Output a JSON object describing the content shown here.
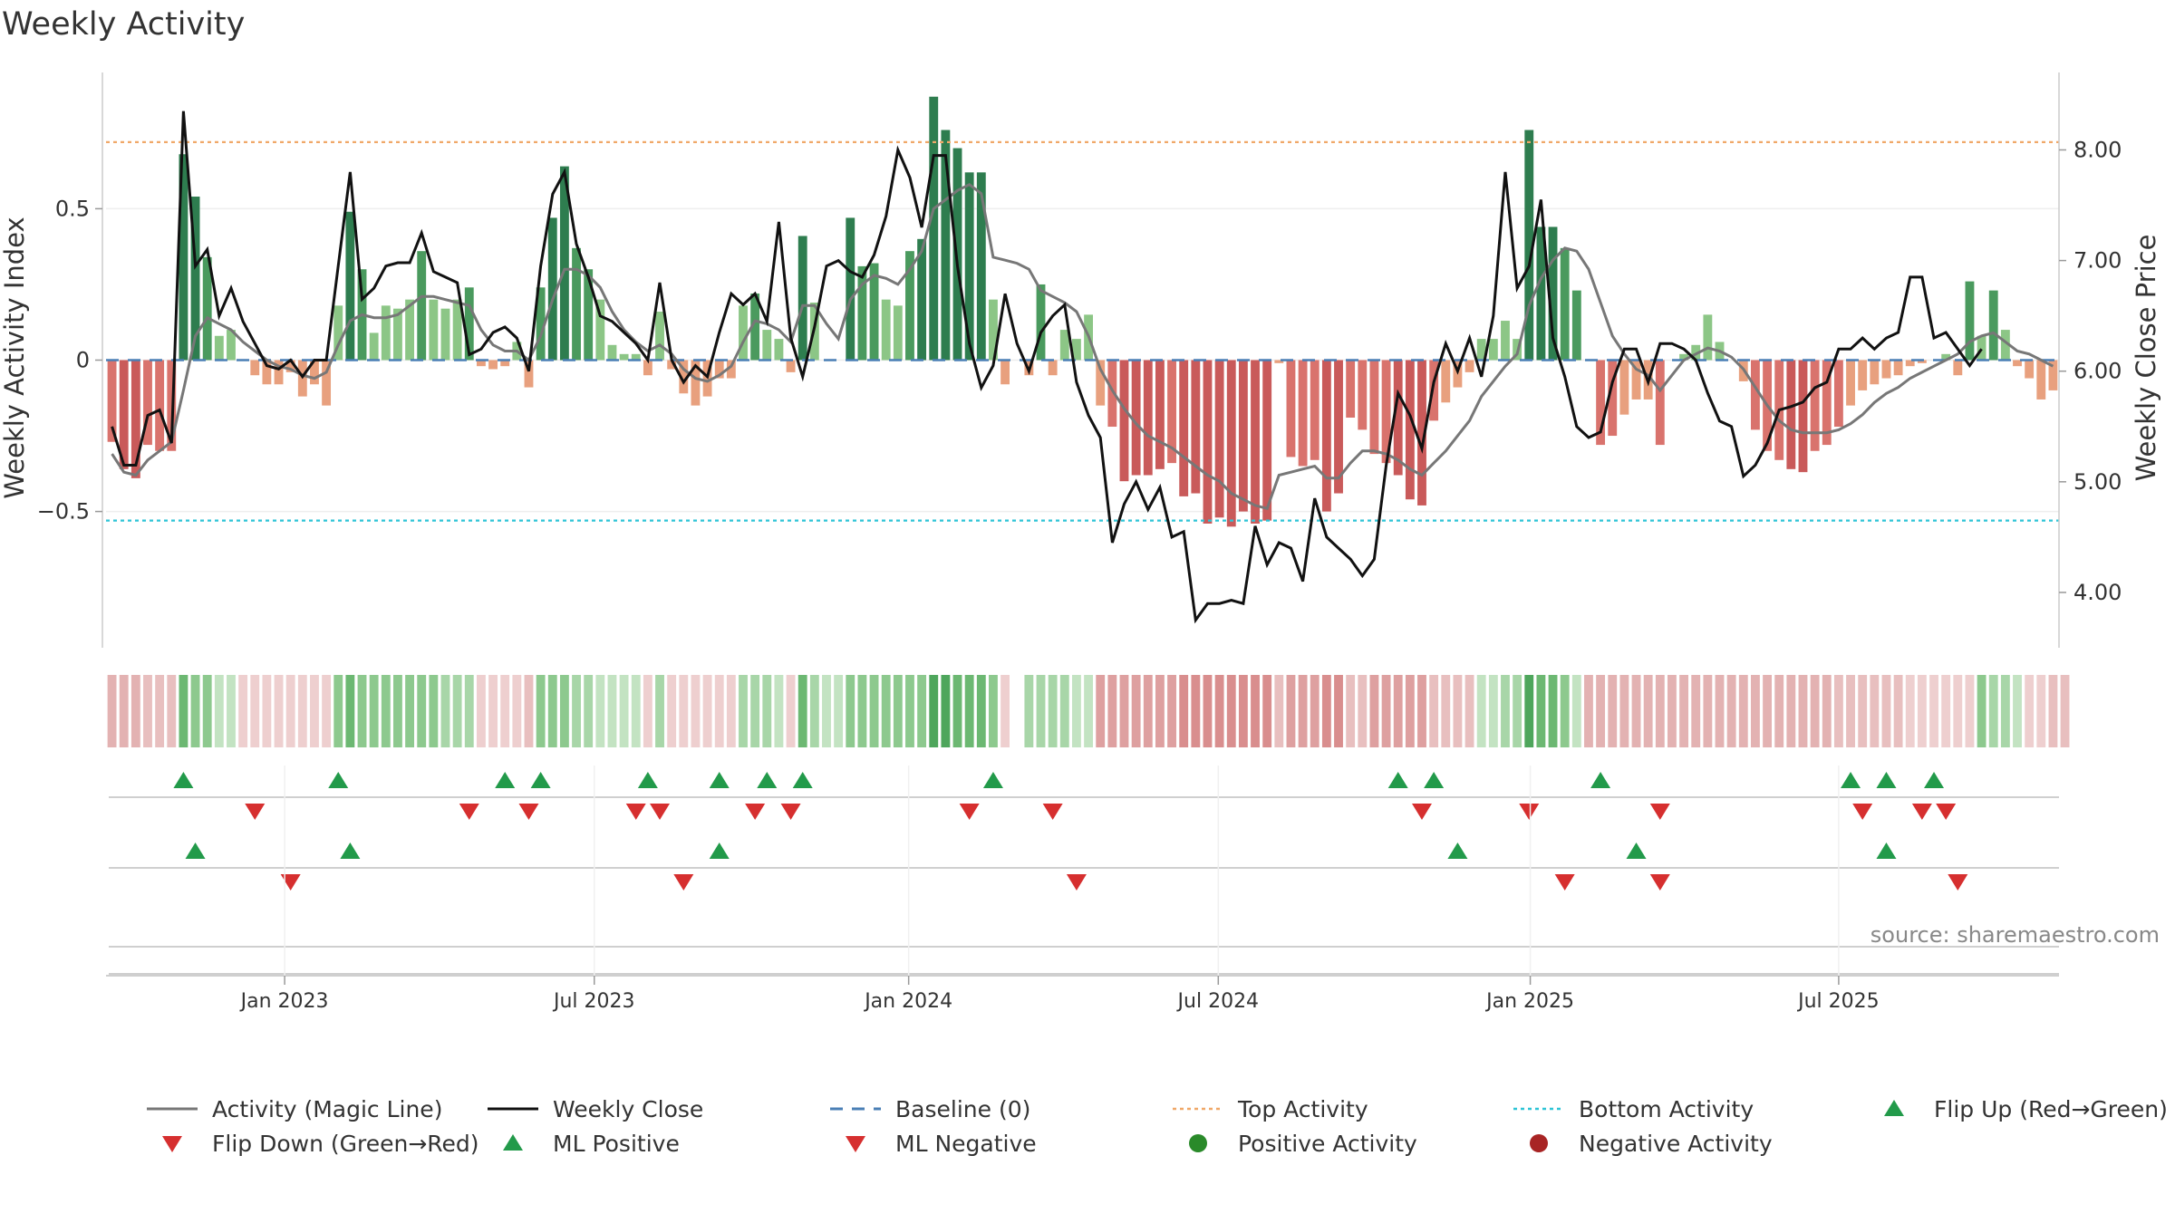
{
  "chart_data": {
    "type": "bar",
    "title": "Weekly Activity",
    "ylabel": "Weekly Activity Index",
    "ylabel_right": "Weekly Close Price",
    "ylim": [
      -0.95,
      0.95
    ],
    "ylim_right": [
      3.5,
      8.7
    ],
    "yticks": [
      0.5,
      0,
      -0.5
    ],
    "yticks_right": [
      8.0,
      7.0,
      6.0,
      5.0,
      4.0
    ],
    "ytick_labels": [
      "0.5",
      "0",
      "−0.5"
    ],
    "ytick_labels_right": [
      "8.00",
      "7.00",
      "6.00",
      "5.00",
      "4.00"
    ],
    "x_ticks": [
      "Jan 2023",
      "Jul 2023",
      "Jan 2024",
      "Jul 2024",
      "Jan 2025",
      "Jul 2025"
    ],
    "x_tick_weeks": [
      15,
      41,
      67.4,
      93.4,
      119.6,
      145.5
    ],
    "top_activity": 0.72,
    "bottom_activity": -0.53,
    "source": "source: sharemaestro.com",
    "activity": [
      -0.27,
      -0.36,
      -0.39,
      -0.28,
      -0.3,
      -0.3,
      0.68,
      0.54,
      0.34,
      0.08,
      0.1,
      0.0,
      -0.05,
      -0.08,
      -0.08,
      -0.04,
      -0.12,
      -0.08,
      -0.15,
      0.18,
      0.49,
      0.3,
      0.09,
      0.18,
      0.17,
      0.2,
      0.36,
      0.2,
      0.17,
      0.2,
      0.24,
      -0.02,
      -0.03,
      -0.02,
      0.06,
      -0.09,
      0.24,
      0.47,
      0.64,
      0.37,
      0.3,
      0.2,
      0.05,
      0.02,
      0.02,
      -0.05,
      0.16,
      -0.03,
      -0.11,
      -0.15,
      -0.12,
      -0.06,
      -0.06,
      0.18,
      0.22,
      0.1,
      0.07,
      -0.04,
      0.41,
      0.19,
      0.0,
      0.0,
      0.47,
      0.31,
      0.32,
      0.2,
      0.18,
      0.36,
      0.4,
      0.87,
      0.76,
      0.7,
      0.62,
      0.62,
      0.2,
      -0.08,
      0.0,
      -0.05,
      0.25,
      -0.05,
      0.1,
      0.07,
      0.15,
      -0.15,
      -0.22,
      -0.4,
      -0.38,
      -0.38,
      -0.36,
      -0.34,
      -0.45,
      -0.44,
      -0.54,
      -0.52,
      -0.55,
      -0.5,
      -0.54,
      -0.53,
      -0.01,
      -0.32,
      -0.35,
      -0.33,
      -0.5,
      -0.44,
      -0.19,
      -0.23,
      -0.31,
      -0.34,
      -0.38,
      -0.46,
      -0.48,
      -0.2,
      -0.14,
      -0.09,
      -0.04,
      0.07,
      0.07,
      0.13,
      0.07,
      0.76,
      0.44,
      0.44,
      0.37,
      0.23,
      0.0,
      -0.28,
      -0.25,
      -0.18,
      -0.13,
      -0.13,
      -0.28,
      0.0,
      0.02,
      0.05,
      0.15,
      0.06,
      0.0,
      -0.07,
      -0.23,
      -0.3,
      -0.33,
      -0.36,
      -0.37,
      -0.3,
      -0.28,
      -0.22,
      -0.15,
      -0.1,
      -0.08,
      -0.06,
      -0.05,
      -0.02,
      -0.01,
      0.0,
      0.02,
      -0.05,
      0.26,
      0.08,
      0.23,
      0.1,
      -0.02,
      -0.06,
      -0.13,
      -0.1
    ],
    "magic_line": [
      -0.31,
      -0.37,
      -0.38,
      -0.33,
      -0.3,
      -0.27,
      -0.1,
      0.08,
      0.14,
      0.12,
      0.1,
      0.06,
      0.03,
      0.0,
      -0.02,
      -0.03,
      -0.05,
      -0.06,
      -0.04,
      0.05,
      0.13,
      0.15,
      0.14,
      0.14,
      0.15,
      0.18,
      0.21,
      0.21,
      0.2,
      0.19,
      0.18,
      0.1,
      0.05,
      0.03,
      0.03,
      0.0,
      0.08,
      0.2,
      0.3,
      0.3,
      0.28,
      0.24,
      0.16,
      0.1,
      0.06,
      0.03,
      0.05,
      0.02,
      -0.03,
      -0.06,
      -0.07,
      -0.05,
      -0.02,
      0.06,
      0.13,
      0.12,
      0.1,
      0.06,
      0.18,
      0.18,
      0.12,
      0.07,
      0.2,
      0.25,
      0.28,
      0.27,
      0.25,
      0.3,
      0.36,
      0.5,
      0.53,
      0.56,
      0.58,
      0.55,
      0.34,
      0.33,
      0.32,
      0.3,
      0.23,
      0.21,
      0.19,
      0.16,
      0.08,
      -0.03,
      -0.1,
      -0.16,
      -0.21,
      -0.25,
      -0.27,
      -0.29,
      -0.32,
      -0.35,
      -0.38,
      -0.4,
      -0.44,
      -0.46,
      -0.48,
      -0.49,
      -0.38,
      -0.37,
      -0.36,
      -0.35,
      -0.39,
      -0.39,
      -0.34,
      -0.3,
      -0.3,
      -0.31,
      -0.33,
      -0.36,
      -0.38,
      -0.34,
      -0.3,
      -0.25,
      -0.2,
      -0.12,
      -0.07,
      -0.02,
      0.02,
      0.18,
      0.27,
      0.33,
      0.37,
      0.36,
      0.3,
      0.19,
      0.08,
      0.02,
      -0.03,
      -0.05,
      -0.1,
      -0.05,
      0.0,
      0.02,
      0.04,
      0.03,
      0.01,
      -0.03,
      -0.09,
      -0.15,
      -0.2,
      -0.23,
      -0.24,
      -0.24,
      -0.24,
      -0.23,
      -0.21,
      -0.18,
      -0.14,
      -0.11,
      -0.09,
      -0.06,
      -0.04,
      -0.02,
      0.0,
      0.02,
      0.06,
      0.08,
      0.09,
      0.06,
      0.03,
      0.02,
      0.0,
      -0.02
    ],
    "weekly_close": [
      5.5,
      5.15,
      5.15,
      5.6,
      5.65,
      5.35,
      8.35,
      6.95,
      7.1,
      6.5,
      6.75,
      6.45,
      6.25,
      6.05,
      6.02,
      6.1,
      5.95,
      6.1,
      6.1,
      6.95,
      7.8,
      6.65,
      6.75,
      6.95,
      6.98,
      6.98,
      7.25,
      6.9,
      6.85,
      6.8,
      6.15,
      6.2,
      6.35,
      6.4,
      6.3,
      6.0,
      6.95,
      7.6,
      7.8,
      7.15,
      6.85,
      6.5,
      6.45,
      6.35,
      6.25,
      6.1,
      6.8,
      6.1,
      5.9,
      6.05,
      5.95,
      6.35,
      6.7,
      6.6,
      6.7,
      6.45,
      7.35,
      6.3,
      5.95,
      6.4,
      6.95,
      7.0,
      6.9,
      6.85,
      7.05,
      7.4,
      8.0,
      7.75,
      7.3,
      7.95,
      7.95,
      6.95,
      6.25,
      5.85,
      6.05,
      6.7,
      6.25,
      6.0,
      6.35,
      6.5,
      6.6,
      5.9,
      5.6,
      5.4,
      4.45,
      4.8,
      5.0,
      4.75,
      4.95,
      4.5,
      4.55,
      3.75,
      3.9,
      3.9,
      3.93,
      3.9,
      4.6,
      4.25,
      4.45,
      4.4,
      4.1,
      4.85,
      4.5,
      4.4,
      4.3,
      4.15,
      4.3,
      5.15,
      5.8,
      5.6,
      5.3,
      5.9,
      6.25,
      6.0,
      6.3,
      5.95,
      6.5,
      7.8,
      6.75,
      6.95,
      7.55,
      6.3,
      5.95,
      5.5,
      5.4,
      5.45,
      5.9,
      6.2,
      6.2,
      5.9,
      6.25,
      6.25,
      6.2,
      6.1,
      5.8,
      5.55,
      5.5,
      5.05,
      5.15,
      5.35,
      5.65,
      5.68,
      5.72,
      5.85,
      5.9,
      6.2,
      6.2,
      6.3,
      6.2,
      6.3,
      6.35,
      6.85,
      6.85,
      6.3,
      6.35,
      6.2,
      6.05,
      6.2
    ],
    "activity_strip": [
      -0.4,
      -0.4,
      -0.4,
      -0.3,
      -0.3,
      -0.3,
      0.8,
      0.5,
      0.5,
      0.2,
      0.2,
      -0.1,
      -0.2,
      -0.2,
      -0.2,
      -0.2,
      -0.2,
      -0.2,
      -0.2,
      0.5,
      0.7,
      0.5,
      0.5,
      0.5,
      0.5,
      0.5,
      0.5,
      0.5,
      0.4,
      0.4,
      0.4,
      -0.1,
      -0.2,
      -0.2,
      -0.2,
      -0.3,
      0.6,
      0.6,
      0.6,
      0.4,
      0.4,
      0.2,
      0.2,
      0.2,
      0.2,
      -0.2,
      0.4,
      -0.2,
      -0.2,
      -0.2,
      -0.2,
      -0.2,
      -0.2,
      0.4,
      0.4,
      0.4,
      0.2,
      -0.2,
      0.8,
      0.4,
      0.2,
      0.2,
      0.6,
      0.5,
      0.5,
      0.5,
      0.5,
      0.6,
      0.6,
      0.9,
      0.9,
      0.8,
      0.7,
      0.7,
      0.5,
      -0.2,
      null,
      0.3,
      0.3,
      0.3,
      0.3,
      0.2,
      0.2,
      -0.5,
      -0.5,
      -0.5,
      -0.5,
      -0.5,
      -0.5,
      -0.5,
      -0.6,
      -0.6,
      -0.6,
      -0.6,
      -0.6,
      -0.6,
      -0.6,
      -0.6,
      -0.3,
      -0.5,
      -0.5,
      -0.5,
      -0.6,
      -0.6,
      -0.3,
      -0.3,
      -0.5,
      -0.5,
      -0.5,
      -0.5,
      -0.5,
      -0.3,
      -0.3,
      -0.3,
      -0.3,
      0.2,
      0.2,
      0.3,
      0.3,
      0.9,
      0.7,
      0.7,
      0.5,
      0.2,
      -0.4,
      -0.4,
      -0.4,
      -0.4,
      -0.4,
      -0.4,
      -0.4,
      -0.4,
      -0.4,
      -0.4,
      -0.4,
      -0.4,
      -0.4,
      -0.4,
      -0.4,
      -0.4,
      -0.4,
      -0.4,
      -0.4,
      -0.4,
      -0.4,
      -0.3,
      -0.3,
      -0.3,
      -0.3,
      -0.3,
      -0.3,
      -0.2,
      -0.2,
      -0.2,
      -0.2,
      -0.2,
      -0.2,
      0.5,
      0.4,
      0.4,
      0.2,
      -0.2,
      -0.2,
      -0.3,
      -0.3
    ],
    "flip_up": [
      6,
      19,
      33,
      36,
      45,
      51,
      55,
      58,
      74,
      108,
      111,
      125,
      146,
      149,
      153
    ],
    "flip_down": [
      12,
      30,
      35,
      44,
      46,
      54,
      57,
      72,
      79,
      110,
      119,
      130,
      147,
      152,
      154
    ],
    "ml_positive": [
      7,
      20,
      51,
      113,
      128,
      149
    ],
    "ml_negative": [
      15,
      48,
      81,
      122,
      130,
      155
    ],
    "legend": [
      {
        "label": "Activity (Magic Line)",
        "kind": "line",
        "color": "#777777"
      },
      {
        "label": "Weekly Close",
        "kind": "line",
        "color": "#111111"
      },
      {
        "label": "Baseline (0)",
        "kind": "dash",
        "color": "#4a7fb5"
      },
      {
        "label": "Top Activity",
        "kind": "dot",
        "color": "#f0a868"
      },
      {
        "label": "Bottom Activity",
        "kind": "dot",
        "color": "#2ec4d6"
      },
      {
        "label": "Flip Up (Red→Green)",
        "kind": "tri-up",
        "color": "#229a4a"
      },
      {
        "label": "Flip Down (Green→Red)",
        "kind": "tri-down",
        "color": "#d62f2f"
      },
      {
        "label": "ML Positive",
        "kind": "tri-up",
        "color": "#229a4a"
      },
      {
        "label": "ML Negative",
        "kind": "tri-down",
        "color": "#d62f2f"
      },
      {
        "label": "Positive Activity",
        "kind": "circle",
        "color": "#2a8a2a"
      },
      {
        "label": "Negative Activity",
        "kind": "circle",
        "color": "#a82424"
      }
    ]
  }
}
